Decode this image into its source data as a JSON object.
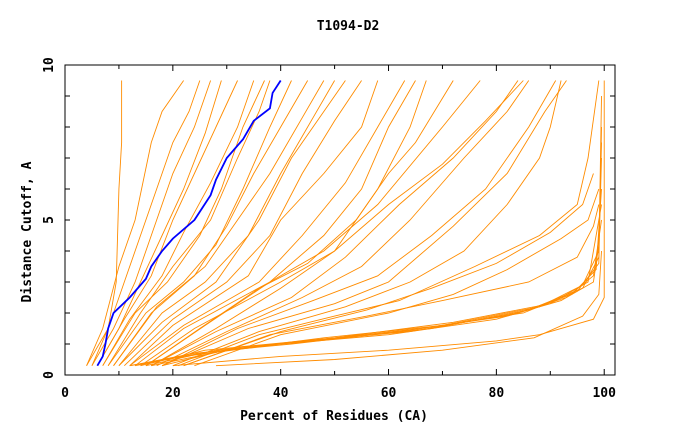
{
  "chart_data": {
    "type": "line",
    "title": "T1094-D2",
    "xlabel": "Percent of Residues (CA)",
    "ylabel": "Distance Cutoff, A",
    "xlim": [
      0,
      102
    ],
    "ylim": [
      0,
      10
    ],
    "xticks": [
      0,
      20,
      40,
      60,
      80,
      100
    ],
    "yticks": [
      0,
      5,
      10
    ],
    "grid": false,
    "colors": {
      "others": "#ff8c00",
      "highlight": "#0000ff"
    },
    "highlight": [
      [
        6,
        0.3
      ],
      [
        7,
        0.6
      ],
      [
        7.5,
        1
      ],
      [
        8,
        1.5
      ],
      [
        9,
        2
      ],
      [
        12,
        2.5
      ],
      [
        15,
        3.1
      ],
      [
        16,
        3.5
      ],
      [
        18,
        4
      ],
      [
        20,
        4.4
      ],
      [
        24,
        5
      ],
      [
        27,
        5.8
      ],
      [
        28,
        6.3
      ],
      [
        30,
        7
      ],
      [
        33,
        7.6
      ],
      [
        35,
        8.2
      ],
      [
        38,
        8.6
      ],
      [
        38.5,
        9.1
      ],
      [
        40,
        9.5
      ]
    ],
    "series": [
      [
        [
          4,
          0.3
        ],
        [
          8,
          1.5
        ],
        [
          9.5,
          3
        ],
        [
          10,
          6
        ],
        [
          10.5,
          7.5
        ],
        [
          10.5,
          9.5
        ]
      ],
      [
        [
          4,
          0.3
        ],
        [
          7,
          1.5
        ],
        [
          10,
          3.5
        ],
        [
          13,
          5
        ],
        [
          16,
          7.5
        ],
        [
          18,
          8.5
        ],
        [
          22,
          9.5
        ]
      ],
      [
        [
          5,
          0.3
        ],
        [
          8,
          1.5
        ],
        [
          11,
          3
        ],
        [
          14,
          4.5
        ],
        [
          17,
          6
        ],
        [
          20,
          7.5
        ],
        [
          23,
          8.5
        ],
        [
          25,
          9.5
        ]
      ],
      [
        [
          5,
          0.3
        ],
        [
          9,
          1.5
        ],
        [
          13,
          3
        ],
        [
          16,
          4.5
        ],
        [
          20,
          6.5
        ],
        [
          24,
          8
        ],
        [
          27,
          9.5
        ]
      ],
      [
        [
          6,
          0.3
        ],
        [
          10,
          1.5
        ],
        [
          14,
          3
        ],
        [
          18,
          4.5
        ],
        [
          22,
          6
        ],
        [
          26,
          7.8
        ],
        [
          29,
          9.5
        ]
      ],
      [
        [
          6,
          0.3
        ],
        [
          11,
          1.8
        ],
        [
          16,
          3.2
        ],
        [
          20,
          5
        ],
        [
          24,
          6.5
        ],
        [
          28,
          8
        ],
        [
          32,
          9.5
        ]
      ],
      [
        [
          7,
          0.3
        ],
        [
          12,
          1.8
        ],
        [
          18,
          3.2
        ],
        [
          22,
          4.6
        ],
        [
          27,
          6.2
        ],
        [
          32,
          8
        ],
        [
          35,
          9.5
        ]
      ],
      [
        [
          7,
          0.3
        ],
        [
          13,
          2
        ],
        [
          19,
          3
        ],
        [
          25,
          4.5
        ],
        [
          29,
          6
        ],
        [
          33,
          8
        ],
        [
          37,
          9.5
        ]
      ],
      [
        [
          8,
          0.3
        ],
        [
          14,
          2
        ],
        [
          20,
          3.5
        ],
        [
          27,
          5
        ],
        [
          32,
          7
        ],
        [
          36,
          8.5
        ],
        [
          38,
          9.5
        ]
      ],
      [
        [
          8,
          0.3
        ],
        [
          15,
          2
        ],
        [
          22,
          3
        ],
        [
          28,
          4.2
        ],
        [
          33,
          6
        ],
        [
          38,
          8
        ],
        [
          42,
          9.5
        ]
      ],
      [
        [
          9,
          0.3
        ],
        [
          16,
          2
        ],
        [
          24,
          3.2
        ],
        [
          30,
          4.8
        ],
        [
          35,
          6.5
        ],
        [
          40,
          8
        ],
        [
          45,
          9.5
        ]
      ],
      [
        [
          9,
          0.3
        ],
        [
          17,
          2.2
        ],
        [
          26,
          3.5
        ],
        [
          32,
          5
        ],
        [
          38,
          6.5
        ],
        [
          44,
          8.3
        ],
        [
          48,
          9.5
        ]
      ],
      [
        [
          10,
          0.3
        ],
        [
          18,
          2
        ],
        [
          26,
          3
        ],
        [
          34,
          4.5
        ],
        [
          40,
          6.5
        ],
        [
          46,
          8.3
        ],
        [
          50,
          9.5
        ]
      ],
      [
        [
          10,
          0.3
        ],
        [
          18,
          1.7
        ],
        [
          28,
          3
        ],
        [
          36,
          5
        ],
        [
          42,
          7
        ],
        [
          48,
          8.5
        ],
        [
          52,
          9.5
        ]
      ],
      [
        [
          11,
          0.3
        ],
        [
          20,
          1.8
        ],
        [
          30,
          3
        ],
        [
          38,
          4.5
        ],
        [
          44,
          6.5
        ],
        [
          50,
          8.2
        ],
        [
          55,
          9.5
        ]
      ],
      [
        [
          12,
          0.3
        ],
        [
          20,
          1.6
        ],
        [
          34,
          3.2
        ],
        [
          40,
          5
        ],
        [
          48,
          6.5
        ],
        [
          55,
          8
        ],
        [
          58,
          9.5
        ]
      ],
      [
        [
          12,
          0.3
        ],
        [
          22,
          1.6
        ],
        [
          36,
          3
        ],
        [
          44,
          4.5
        ],
        [
          52,
          6.2
        ],
        [
          58,
          8
        ],
        [
          63,
          9.5
        ]
      ],
      [
        [
          13,
          0.3
        ],
        [
          22,
          1.5
        ],
        [
          38,
          3
        ],
        [
          48,
          4.5
        ],
        [
          55,
          6
        ],
        [
          60,
          8
        ],
        [
          65,
          9.5
        ]
      ],
      [
        [
          14,
          0.3
        ],
        [
          24,
          1.5
        ],
        [
          40,
          3
        ],
        [
          50,
          4
        ],
        [
          58,
          6
        ],
        [
          64,
          8
        ],
        [
          67,
          9.5
        ]
      ],
      [
        [
          15,
          0.3
        ],
        [
          25,
          1.5
        ],
        [
          36,
          2.8
        ],
        [
          45,
          3.6
        ],
        [
          54,
          5
        ],
        [
          60,
          6.5
        ],
        [
          65,
          7.5
        ],
        [
          72,
          9.5
        ]
      ],
      [
        [
          15,
          0.3
        ],
        [
          26,
          1.6
        ],
        [
          38,
          3
        ],
        [
          48,
          4
        ],
        [
          58,
          5.5
        ],
        [
          70,
          8
        ],
        [
          77,
          9.5
        ]
      ],
      [
        [
          16,
          0.3
        ],
        [
          28,
          1.5
        ],
        [
          40,
          2.8
        ],
        [
          50,
          4
        ],
        [
          60,
          5.5
        ],
        [
          70,
          6.8
        ],
        [
          78,
          8.2
        ],
        [
          85,
          9.5
        ]
      ],
      [
        [
          16,
          0.3
        ],
        [
          28,
          1.4
        ],
        [
          42,
          2.5
        ],
        [
          52,
          3.8
        ],
        [
          62,
          5.5
        ],
        [
          72,
          7
        ],
        [
          80,
          8.5
        ],
        [
          84,
          9.5
        ]
      ],
      [
        [
          17,
          0.3
        ],
        [
          30,
          1.4
        ],
        [
          44,
          2.5
        ],
        [
          55,
          3.5
        ],
        [
          64,
          5
        ],
        [
          74,
          7
        ],
        [
          82,
          8.5
        ],
        [
          86,
          9.5
        ]
      ],
      [
        [
          18,
          0.3
        ],
        [
          32,
          1.5
        ],
        [
          46,
          2.4
        ],
        [
          58,
          3.2
        ],
        [
          68,
          4.5
        ],
        [
          78,
          6
        ],
        [
          86,
          8
        ],
        [
          91,
          9.5
        ]
      ],
      [
        [
          18,
          0.3
        ],
        [
          34,
          1.5
        ],
        [
          50,
          2.3
        ],
        [
          60,
          3
        ],
        [
          72,
          4.8
        ],
        [
          82,
          6.5
        ],
        [
          89,
          8.5
        ],
        [
          93,
          9.5
        ]
      ],
      [
        [
          20,
          0.3
        ],
        [
          36,
          1.4
        ],
        [
          52,
          2.2
        ],
        [
          64,
          3
        ],
        [
          74,
          4
        ],
        [
          82,
          5.5
        ],
        [
          88,
          7
        ],
        [
          90,
          8
        ],
        [
          92,
          9.5
        ]
      ],
      [
        [
          21,
          0.3
        ],
        [
          36,
          1.3
        ],
        [
          50,
          1.9
        ],
        [
          62,
          2.4
        ],
        [
          76,
          3.5
        ],
        [
          88,
          4.5
        ],
        [
          95,
          5.5
        ],
        [
          97,
          7
        ],
        [
          99,
          9.5
        ]
      ],
      [
        [
          22,
          0.3
        ],
        [
          40,
          1.4
        ],
        [
          56,
          2.1
        ],
        [
          68,
          2.8
        ],
        [
          80,
          3.6
        ],
        [
          90,
          4.6
        ],
        [
          96,
          5.5
        ],
        [
          98,
          6.5
        ]
      ],
      [
        [
          24,
          0.3
        ],
        [
          40,
          1.3
        ],
        [
          60,
          2
        ],
        [
          72,
          2.6
        ],
        [
          82,
          3.4
        ],
        [
          92,
          4.4
        ],
        [
          97,
          5
        ],
        [
          99,
          6
        ]
      ],
      [
        [
          22,
          0.3
        ],
        [
          38,
          1.3
        ],
        [
          56,
          1.9
        ],
        [
          70,
          2.4
        ],
        [
          86,
          3
        ],
        [
          95,
          3.8
        ],
        [
          98,
          4.8
        ],
        [
          99,
          5.5
        ]
      ],
      [
        [
          12,
          0.3
        ],
        [
          22,
          0.6
        ],
        [
          40,
          1
        ],
        [
          60,
          1.3
        ],
        [
          80,
          1.8
        ],
        [
          92,
          2.4
        ],
        [
          98,
          3
        ],
        [
          99,
          4.2
        ],
        [
          99.5,
          7.5
        ]
      ],
      [
        [
          12,
          0.3
        ],
        [
          24,
          0.7
        ],
        [
          42,
          1
        ],
        [
          62,
          1.4
        ],
        [
          82,
          1.9
        ],
        [
          93,
          2.5
        ],
        [
          98,
          3.2
        ],
        [
          99.5,
          5
        ]
      ],
      [
        [
          13,
          0.3
        ],
        [
          25,
          0.7
        ],
        [
          44,
          1.1
        ],
        [
          64,
          1.4
        ],
        [
          84,
          2
        ],
        [
          94,
          2.6
        ],
        [
          98.5,
          3.4
        ],
        [
          99.5,
          6
        ]
      ],
      [
        [
          14,
          0.3
        ],
        [
          26,
          0.8
        ],
        [
          45,
          1.1
        ],
        [
          66,
          1.5
        ],
        [
          85,
          2
        ],
        [
          95,
          2.7
        ],
        [
          99,
          3.6
        ],
        [
          99.5,
          8
        ]
      ],
      [
        [
          15,
          0.3
        ],
        [
          28,
          0.8
        ],
        [
          46,
          1.1
        ],
        [
          68,
          1.5
        ],
        [
          86,
          2.1
        ],
        [
          96,
          2.8
        ],
        [
          99,
          3.8
        ],
        [
          99.5,
          9
        ]
      ],
      [
        [
          16,
          0.3
        ],
        [
          30,
          0.8
        ],
        [
          48,
          1.2
        ],
        [
          70,
          1.6
        ],
        [
          88,
          2.2
        ],
        [
          96,
          2.9
        ],
        [
          99,
          4
        ],
        [
          99.5,
          7
        ]
      ],
      [
        [
          18,
          0.3
        ],
        [
          32,
          0.9
        ],
        [
          50,
          1.2
        ],
        [
          72,
          1.7
        ],
        [
          90,
          2.3
        ],
        [
          97,
          3
        ],
        [
          99.5,
          5.5
        ]
      ],
      [
        [
          20,
          0.3
        ],
        [
          40,
          0.6
        ],
        [
          60,
          0.8
        ],
        [
          80,
          1.1
        ],
        [
          88,
          1.3
        ],
        [
          98,
          1.8
        ],
        [
          100,
          2.5
        ],
        [
          100,
          9.5
        ]
      ],
      [
        [
          28,
          0.3
        ],
        [
          50,
          0.5
        ],
        [
          70,
          0.8
        ],
        [
          87,
          1.2
        ],
        [
          96,
          1.9
        ],
        [
          99,
          2.6
        ],
        [
          99.5,
          4
        ]
      ]
    ]
  }
}
